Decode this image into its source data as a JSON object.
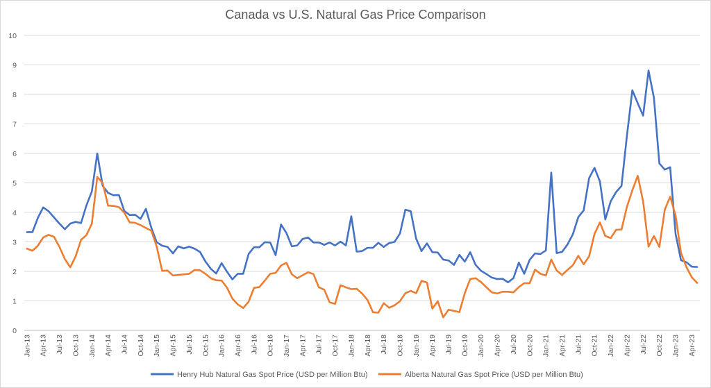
{
  "chart_data": {
    "type": "line",
    "title": "Canada vs U.S. Natural Gas Price Comparison",
    "xlabel": "",
    "ylabel": "",
    "ylim": [
      0,
      10
    ],
    "y_ticks": [
      "0",
      "1",
      "2",
      "3",
      "4",
      "5",
      "6",
      "7",
      "8",
      "9",
      "10"
    ],
    "grid": true,
    "legend_position": "bottom",
    "x_tick_labels": [
      "Jan-13",
      "Apr-13",
      "Jul-13",
      "Oct-13",
      "Jan-14",
      "Apr-14",
      "Jul-14",
      "Oct-14",
      "Jan-15",
      "Apr-15",
      "Jul-15",
      "Oct-15",
      "Jan-16",
      "Apr-16",
      "Jul-16",
      "Oct-16",
      "Jan-17",
      "Apr-17",
      "Jul-17",
      "Oct-17",
      "Jan-18",
      "Apr-18",
      "Jul-18",
      "Oct-18",
      "Jan-19",
      "Apr-19",
      "Jul-19",
      "Oct-19",
      "Jan-20",
      "Apr-20",
      "Jul-20",
      "Oct-20",
      "Jan-21",
      "Apr-21",
      "Jul-21",
      "Oct-21",
      "Jan-22",
      "Apr-22",
      "Jul-22",
      "Oct-22",
      "Jan-23",
      "Apr-23"
    ],
    "series": [
      {
        "name": "Henry Hub Natural Gas Spot Price (USD per Million Btu)",
        "color": "#4472c4",
        "values": [
          3.33,
          3.33,
          3.81,
          4.17,
          4.04,
          3.83,
          3.62,
          3.43,
          3.62,
          3.68,
          3.64,
          4.24,
          4.71,
          6.0,
          4.9,
          4.66,
          4.58,
          4.59,
          4.05,
          3.91,
          3.92,
          3.78,
          4.12,
          3.48,
          2.99,
          2.87,
          2.83,
          2.61,
          2.85,
          2.78,
          2.84,
          2.77,
          2.66,
          2.34,
          2.09,
          1.93,
          2.28,
          1.99,
          1.73,
          1.92,
          1.92,
          2.59,
          2.82,
          2.82,
          2.99,
          2.98,
          2.55,
          3.59,
          3.3,
          2.85,
          2.88,
          3.1,
          3.15,
          2.98,
          2.98,
          2.9,
          2.98,
          2.88,
          3.01,
          2.88,
          3.87,
          2.67,
          2.69,
          2.8,
          2.8,
          2.97,
          2.83,
          2.96,
          3.0,
          3.28,
          4.09,
          4.04,
          3.11,
          2.69,
          2.95,
          2.65,
          2.64,
          2.4,
          2.37,
          2.22,
          2.56,
          2.33,
          2.65,
          2.22,
          2.02,
          1.91,
          1.79,
          1.74,
          1.75,
          1.63,
          1.77,
          2.3,
          1.92,
          2.39,
          2.61,
          2.59,
          2.71,
          5.35,
          2.62,
          2.66,
          2.91,
          3.26,
          3.84,
          4.07,
          5.16,
          5.51,
          5.05,
          3.76,
          4.38,
          4.69,
          4.9,
          6.6,
          8.14,
          7.7,
          7.28,
          8.81,
          7.88,
          5.66,
          5.45,
          5.53,
          3.27,
          2.38,
          2.31,
          2.16,
          2.15
        ]
      },
      {
        "name": "Alberta Natural Gas Spot Price (USD per Million Btu)",
        "color": "#ed7d31",
        "values": [
          2.77,
          2.7,
          2.87,
          3.15,
          3.24,
          3.17,
          2.83,
          2.42,
          2.14,
          2.51,
          3.07,
          3.23,
          3.62,
          5.2,
          5.0,
          4.23,
          4.22,
          4.18,
          3.99,
          3.66,
          3.65,
          3.57,
          3.47,
          3.38,
          2.84,
          2.02,
          2.03,
          1.86,
          1.88,
          1.9,
          1.92,
          2.05,
          2.04,
          1.92,
          1.77,
          1.7,
          1.69,
          1.45,
          1.08,
          0.88,
          0.76,
          0.97,
          1.44,
          1.47,
          1.69,
          1.92,
          1.95,
          2.2,
          2.29,
          1.9,
          1.77,
          1.87,
          1.97,
          1.91,
          1.46,
          1.38,
          0.95,
          0.9,
          1.53,
          1.46,
          1.4,
          1.41,
          1.25,
          1.03,
          0.62,
          0.6,
          0.92,
          0.77,
          0.85,
          0.99,
          1.26,
          1.34,
          1.26,
          1.68,
          1.62,
          0.74,
          0.99,
          0.44,
          0.7,
          0.66,
          0.62,
          1.26,
          1.74,
          1.77,
          1.64,
          1.46,
          1.29,
          1.25,
          1.31,
          1.31,
          1.29,
          1.47,
          1.6,
          1.6,
          2.06,
          1.92,
          1.86,
          2.4,
          2.03,
          1.88,
          2.05,
          2.21,
          2.53,
          2.24,
          2.51,
          3.27,
          3.66,
          3.2,
          3.13,
          3.41,
          3.42,
          4.19,
          4.75,
          5.24,
          4.37,
          2.84,
          3.2,
          2.83,
          4.09,
          4.53,
          3.9,
          2.63,
          2.15,
          1.8,
          1.61
        ]
      }
    ]
  }
}
